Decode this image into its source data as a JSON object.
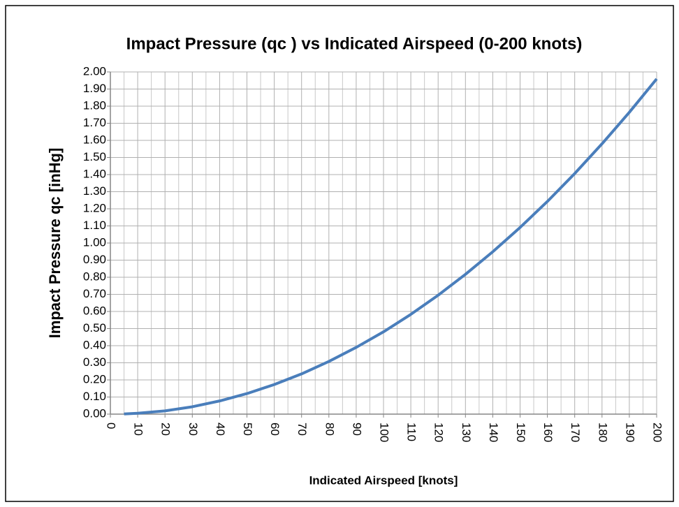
{
  "chart_data": {
    "type": "line",
    "title": "Impact Pressure (qc ) vs Indicated Airspeed (0-200 knots)",
    "x_label": "Indicated  Airspeed [knots]",
    "y_label": "Impact Pressure qc [inHg]",
    "x": [
      5,
      10,
      20,
      30,
      40,
      50,
      60,
      70,
      80,
      90,
      100,
      110,
      120,
      130,
      140,
      150,
      160,
      170,
      180,
      190,
      200
    ],
    "series": [
      {
        "name": "qc",
        "color": "#4a7ebb",
        "values": [
          0.001,
          0.005,
          0.019,
          0.043,
          0.077,
          0.12,
          0.173,
          0.235,
          0.308,
          0.39,
          0.481,
          0.583,
          0.695,
          0.817,
          0.949,
          1.091,
          1.243,
          1.406,
          1.58,
          1.764,
          1.959
        ]
      }
    ],
    "xlim": [
      0,
      200
    ],
    "xticks": [
      0,
      10,
      20,
      30,
      40,
      50,
      60,
      70,
      80,
      90,
      100,
      110,
      120,
      130,
      140,
      150,
      160,
      170,
      180,
      190,
      200
    ],
    "xminorticks": [
      5,
      15,
      25,
      35,
      45,
      55,
      65,
      75,
      85,
      95,
      105,
      115,
      125,
      135,
      145,
      155,
      165,
      175,
      185,
      195
    ],
    "ylim": [
      0,
      2
    ],
    "yticks": [
      {
        "value": 0,
        "label": "0.00"
      },
      {
        "value": 0.1,
        "label": "0.10"
      },
      {
        "value": 0.2,
        "label": "0.20"
      },
      {
        "value": 0.3,
        "label": "0.30"
      },
      {
        "value": 0.4,
        "label": "0.40"
      },
      {
        "value": 0.5,
        "label": "0.50"
      },
      {
        "value": 0.6,
        "label": "0.60"
      },
      {
        "value": 0.7,
        "label": "0.70"
      },
      {
        "value": 0.8,
        "label": "0.80"
      },
      {
        "value": 0.9,
        "label": "0.90"
      },
      {
        "value": 1.0,
        "label": "1.00"
      },
      {
        "value": 1.1,
        "label": "1.10"
      },
      {
        "value": 1.2,
        "label": "1.20"
      },
      {
        "value": 1.3,
        "label": "1.30"
      },
      {
        "value": 1.4,
        "label": "1.40"
      },
      {
        "value": 1.5,
        "label": "1.50"
      },
      {
        "value": 1.6,
        "label": "1.60"
      },
      {
        "value": 1.7,
        "label": "1.70"
      },
      {
        "value": 1.8,
        "label": "1.80"
      },
      {
        "value": 1.9,
        "label": "1.90"
      },
      {
        "value": 2.0,
        "label": "2.00"
      }
    ],
    "grid": true
  }
}
